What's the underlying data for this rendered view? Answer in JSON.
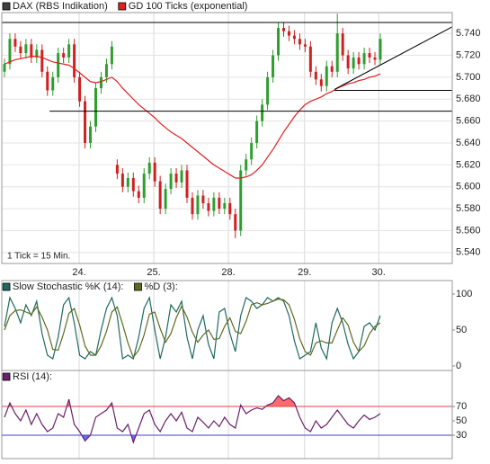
{
  "chart_data": [
    {
      "type": "candlestick",
      "annotation": "1 Tick = 15 Min.",
      "xlim": [
        -0.5,
        83.4
      ],
      "xticks": [
        {
          "value": 13.9,
          "label": "24."
        },
        {
          "value": 27.8,
          "label": "25."
        },
        {
          "value": 41.7,
          "label": "28."
        },
        {
          "value": 55.9,
          "label": "29."
        },
        {
          "value": 69.7,
          "label": "30."
        }
      ],
      "ylim": [
        5.53,
        5.759
      ],
      "yticks": [
        {
          "value": 5.54,
          "label": "5.540"
        },
        {
          "value": 5.56,
          "label": "5.560"
        },
        {
          "value": 5.58,
          "label": "5.580"
        },
        {
          "value": 5.6,
          "label": "5.600"
        },
        {
          "value": 5.62,
          "label": "5.620"
        },
        {
          "value": 5.64,
          "label": "5.640"
        },
        {
          "value": 5.66,
          "label": "5.660"
        },
        {
          "value": 5.68,
          "label": "5.680"
        },
        {
          "value": 5.7,
          "label": "5.700"
        },
        {
          "value": 5.72,
          "label": "5.720"
        },
        {
          "value": 5.74,
          "label": "5.740"
        }
      ],
      "grid": true,
      "lines": [
        {
          "from": [
            -0.5,
            5.75
          ],
          "to": [
            83.4,
            5.75
          ]
        },
        {
          "from": [
            8.4,
            5.669
          ],
          "to": [
            83.4,
            5.669
          ]
        },
        {
          "from": [
            61.5,
            5.688
          ],
          "to": [
            83.4,
            5.688
          ]
        },
        {
          "from": [
            61.5,
            5.689
          ],
          "to": [
            83.4,
            5.746
          ]
        }
      ],
      "series": [
        {
          "name": "DAX (RBS Indikation)",
          "color": "#404040",
          "up_color": "#2e9e2e",
          "down_color": "#d02020",
          "open": [
            5.705,
            5.712,
            5.735,
            5.728,
            5.722,
            5.73,
            5.718,
            5.725,
            5.705,
            5.688,
            5.7,
            5.722,
            5.718,
            5.73,
            5.7,
            5.678,
            5.64,
            5.655,
            5.69,
            5.7,
            5.712,
            5.62,
            5.612,
            5.6,
            5.608,
            5.596,
            5.59,
            5.612,
            5.622,
            5.605,
            5.58,
            5.598,
            5.612,
            5.604,
            5.615,
            5.59,
            5.575,
            5.592,
            5.585,
            5.578,
            5.59,
            5.58,
            5.585,
            5.575,
            5.56,
            5.615,
            5.625,
            5.64,
            5.66,
            5.675,
            5.7,
            5.72,
            5.745,
            5.742,
            5.738,
            5.735,
            5.73,
            5.728,
            5.705,
            5.698,
            5.692,
            5.71,
            5.705,
            5.74,
            5.72,
            5.708,
            5.718,
            5.712,
            5.722,
            5.718,
            5.716
          ],
          "high": [
            5.717,
            5.74,
            5.74,
            5.733,
            5.735,
            5.735,
            5.73,
            5.73,
            5.71,
            5.705,
            5.727,
            5.727,
            5.735,
            5.735,
            5.705,
            5.683,
            5.66,
            5.695,
            5.705,
            5.717,
            5.733,
            5.625,
            5.617,
            5.613,
            5.613,
            5.601,
            5.617,
            5.627,
            5.627,
            5.61,
            5.603,
            5.617,
            5.617,
            5.62,
            5.62,
            5.595,
            5.597,
            5.597,
            5.59,
            5.595,
            5.595,
            5.59,
            5.59,
            5.58,
            5.62,
            5.63,
            5.645,
            5.665,
            5.68,
            5.705,
            5.725,
            5.75,
            5.75,
            5.747,
            5.743,
            5.74,
            5.735,
            5.733,
            5.71,
            5.703,
            5.715,
            5.715,
            5.758,
            5.745,
            5.725,
            5.723,
            5.723,
            5.727,
            5.727,
            5.723,
            5.74
          ],
          "low": [
            5.7,
            5.707,
            5.723,
            5.717,
            5.717,
            5.713,
            5.713,
            5.7,
            5.683,
            5.683,
            5.695,
            5.713,
            5.713,
            5.695,
            5.673,
            5.635,
            5.635,
            5.65,
            5.685,
            5.695,
            5.707,
            5.607,
            5.595,
            5.595,
            5.591,
            5.585,
            5.585,
            5.607,
            5.6,
            5.575,
            5.575,
            5.593,
            5.599,
            5.599,
            5.585,
            5.57,
            5.57,
            5.58,
            5.573,
            5.573,
            5.575,
            5.575,
            5.57,
            5.553,
            5.555,
            5.61,
            5.62,
            5.635,
            5.655,
            5.67,
            5.695,
            5.715,
            5.737,
            5.733,
            5.73,
            5.725,
            5.723,
            5.7,
            5.693,
            5.687,
            5.687,
            5.7,
            5.7,
            5.715,
            5.703,
            5.703,
            5.707,
            5.707,
            5.713,
            5.711,
            5.711
          ],
          "close": [
            5.712,
            5.735,
            5.728,
            5.722,
            5.73,
            5.718,
            5.725,
            5.705,
            5.688,
            5.7,
            5.722,
            5.718,
            5.73,
            5.7,
            5.678,
            5.64,
            5.655,
            5.69,
            5.7,
            5.712,
            5.728,
            5.612,
            5.6,
            5.608,
            5.596,
            5.59,
            5.612,
            5.622,
            5.605,
            5.58,
            5.598,
            5.612,
            5.604,
            5.615,
            5.59,
            5.575,
            5.592,
            5.585,
            5.578,
            5.59,
            5.58,
            5.585,
            5.575,
            5.56,
            5.615,
            5.625,
            5.64,
            5.66,
            5.675,
            5.7,
            5.72,
            5.745,
            5.742,
            5.738,
            5.735,
            5.73,
            5.728,
            5.705,
            5.698,
            5.692,
            5.71,
            5.705,
            5.74,
            5.72,
            5.708,
            5.718,
            5.712,
            5.722,
            5.718,
            5.716,
            5.735
          ]
        },
        {
          "name": "GD 100 Ticks (exponential)",
          "color": "#e02020",
          "values": [
            5.712,
            5.714,
            5.716,
            5.717,
            5.718,
            5.719,
            5.719,
            5.718,
            5.716,
            5.714,
            5.713,
            5.712,
            5.711,
            5.708,
            5.704,
            5.7,
            5.696,
            5.695,
            5.696,
            5.698,
            5.7,
            5.696,
            5.69,
            5.685,
            5.68,
            5.675,
            5.671,
            5.667,
            5.663,
            5.658,
            5.654,
            5.65,
            5.647,
            5.644,
            5.64,
            5.636,
            5.632,
            5.628,
            5.624,
            5.62,
            5.617,
            5.614,
            5.611,
            5.608,
            5.608,
            5.609,
            5.611,
            5.615,
            5.62,
            5.627,
            5.634,
            5.642,
            5.65,
            5.657,
            5.664,
            5.67,
            5.675,
            5.678,
            5.68,
            5.682,
            5.685,
            5.687,
            5.69,
            5.692,
            5.694,
            5.695,
            5.697,
            5.698,
            5.7,
            5.701,
            5.703
          ]
        }
      ]
    },
    {
      "type": "line",
      "xlim": [
        -0.5,
        83.4
      ],
      "ylim": [
        -6.25,
        118.75
      ],
      "yticks": [
        0,
        50,
        100
      ],
      "series": [
        {
          "name": "Slow Stochastic %K (14):",
          "color": "#1f6a60",
          "values": [
            55,
            95,
            80,
            60,
            85,
            70,
            90,
            45,
            15,
            10,
            40,
            85,
            95,
            60,
            15,
            10,
            20,
            15,
            50,
            80,
            95,
            70,
            10,
            15,
            10,
            40,
            80,
            95,
            50,
            10,
            40,
            85,
            75,
            90,
            40,
            10,
            50,
            70,
            30,
            10,
            75,
            80,
            45,
            20,
            70,
            95,
            90,
            80,
            85,
            95,
            90,
            95,
            90,
            70,
            35,
            10,
            15,
            20,
            60,
            25,
            10,
            60,
            80,
            60,
            30,
            10,
            20,
            55,
            60,
            50,
            70
          ]
        },
        {
          "name": "%D (3):",
          "color": "#5f6a20",
          "values": [
            50,
            70,
            77,
            78,
            75,
            72,
            82,
            68,
            50,
            23,
            22,
            45,
            73,
            80,
            57,
            28,
            15,
            15,
            28,
            48,
            75,
            82,
            58,
            32,
            12,
            22,
            43,
            72,
            75,
            52,
            33,
            45,
            67,
            83,
            68,
            47,
            33,
            43,
            50,
            37,
            38,
            55,
            67,
            48,
            45,
            62,
            85,
            88,
            85,
            87,
            90,
            93,
            92,
            85,
            65,
            38,
            20,
            15,
            32,
            35,
            32,
            32,
            50,
            67,
            57,
            33,
            20,
            28,
            45,
            55,
            60
          ]
        }
      ]
    },
    {
      "type": "line",
      "xlim": [
        -0.5,
        83.4
      ],
      "ylim": [
        -2.5,
        120
      ],
      "yticks": [
        30,
        50,
        70
      ],
      "levels": [
        {
          "value": 70,
          "color": "#e04040",
          "fill": "#ff6a6a",
          "side": "above"
        },
        {
          "value": 30,
          "color": "#4040c0",
          "fill": "#6a6aff",
          "side": "below"
        }
      ],
      "series": [
        {
          "name": "RSI (14):",
          "color": "#6a206a",
          "values": [
            55,
            75,
            60,
            50,
            65,
            45,
            60,
            45,
            35,
            40,
            60,
            55,
            80,
            45,
            35,
            22,
            30,
            55,
            60,
            65,
            75,
            40,
            35,
            45,
            20,
            40,
            60,
            65,
            45,
            35,
            50,
            60,
            50,
            62,
            40,
            35,
            55,
            48,
            40,
            50,
            42,
            55,
            45,
            40,
            72,
            60,
            65,
            68,
            66,
            72,
            75,
            85,
            78,
            82,
            75,
            55,
            40,
            35,
            50,
            40,
            45,
            55,
            65,
            55,
            45,
            40,
            50,
            58,
            52,
            55,
            60
          ]
        }
      ]
    }
  ]
}
